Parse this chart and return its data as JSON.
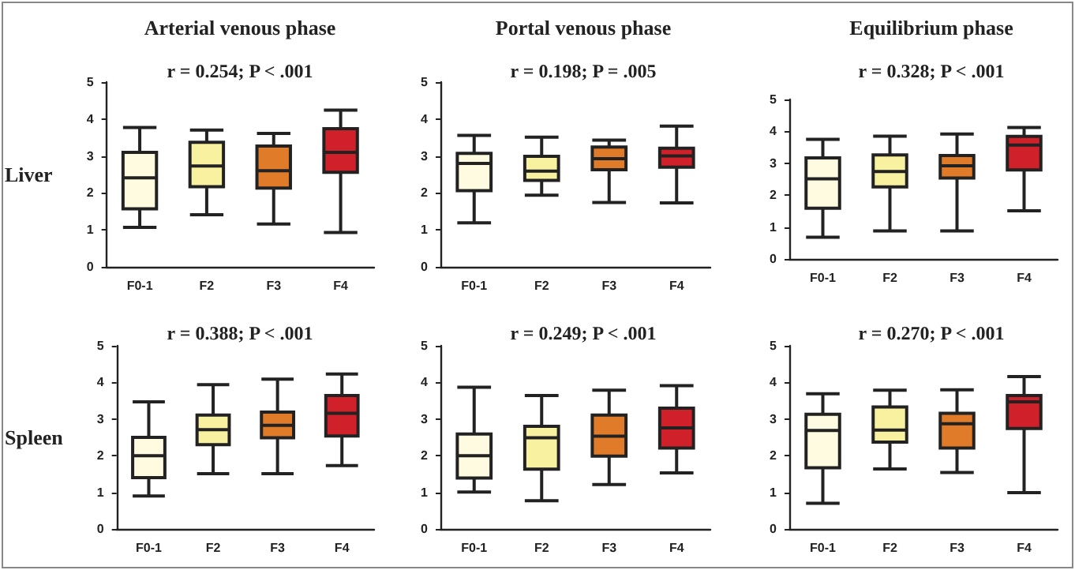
{
  "chart_data": [
    {
      "type": "box",
      "title": "Arterial venous phase",
      "subtitle": "r = 0.254; P < .001",
      "ylabel": "Liver",
      "categories": [
        "F0-1",
        "F2",
        "F3",
        "F4"
      ],
      "colors": [
        "#fffbe0",
        "#f7f1a0",
        "#e07b2a",
        "#d0202a"
      ],
      "ylim": [
        0,
        5
      ],
      "yticks": [
        0,
        1,
        2,
        3,
        4,
        5
      ],
      "grid": false,
      "boxes": [
        {
          "low": 1.07,
          "q1": 1.57,
          "median": 2.41,
          "q3": 3.1,
          "high": 3.77
        },
        {
          "low": 1.41,
          "q1": 2.17,
          "median": 2.73,
          "q3": 3.37,
          "high": 3.7
        },
        {
          "low": 1.16,
          "q1": 2.13,
          "median": 2.6,
          "q3": 3.27,
          "high": 3.61
        },
        {
          "low": 0.93,
          "q1": 2.56,
          "median": 3.1,
          "q3": 3.74,
          "high": 4.24
        }
      ]
    },
    {
      "type": "box",
      "title": "Portal venous phase",
      "subtitle": "r = 0.198; P = .005",
      "categories": [
        "F0-1",
        "F2",
        "F3",
        "F4"
      ],
      "colors": [
        "#fffbe0",
        "#f7f1a0",
        "#e07b2a",
        "#d0202a"
      ],
      "ylim": [
        0,
        5
      ],
      "yticks": [
        0,
        1,
        2,
        3,
        4,
        5
      ],
      "grid": false,
      "boxes": [
        {
          "low": 1.19,
          "q1": 2.06,
          "median": 2.8,
          "q3": 3.07,
          "high": 3.56
        },
        {
          "low": 1.94,
          "q1": 2.34,
          "median": 2.59,
          "q3": 2.99,
          "high": 3.51
        },
        {
          "low": 1.74,
          "q1": 2.63,
          "median": 2.93,
          "q3": 3.24,
          "high": 3.43
        },
        {
          "low": 1.73,
          "q1": 2.7,
          "median": 3.0,
          "q3": 3.21,
          "high": 3.81
        }
      ]
    },
    {
      "type": "box",
      "title": "Equilibrium phase",
      "subtitle": "r = 0.328; P < .001",
      "categories": [
        "F0-1",
        "F2",
        "F3",
        "F4"
      ],
      "colors": [
        "#fffbe0",
        "#f7f1a0",
        "#e07b2a",
        "#d0202a"
      ],
      "ylim": [
        0,
        5
      ],
      "yticks": [
        0,
        1,
        2,
        3,
        4,
        5
      ],
      "grid": false,
      "boxes": [
        {
          "low": 0.68,
          "q1": 1.59,
          "median": 2.51,
          "q3": 3.17,
          "high": 3.75
        },
        {
          "low": 0.88,
          "q1": 2.26,
          "median": 2.74,
          "q3": 3.26,
          "high": 3.85
        },
        {
          "low": 0.88,
          "q1": 2.54,
          "median": 2.92,
          "q3": 3.24,
          "high": 3.92
        },
        {
          "low": 1.51,
          "q1": 2.79,
          "median": 3.57,
          "q3": 3.84,
          "high": 4.12
        }
      ]
    },
    {
      "type": "box",
      "subtitle": "r = 0.388; P < .001",
      "ylabel": "Spleen",
      "categories": [
        "F0-1",
        "F2",
        "F3",
        "F4"
      ],
      "colors": [
        "#fffbe0",
        "#f7f1a0",
        "#e07b2a",
        "#d0202a"
      ],
      "ylim": [
        0,
        5
      ],
      "yticks": [
        0,
        1,
        2,
        3,
        4,
        5
      ],
      "grid": false,
      "boxes": [
        {
          "low": 0.9,
          "q1": 1.4,
          "median": 2.0,
          "q3": 2.5,
          "high": 3.47
        },
        {
          "low": 1.51,
          "q1": 2.3,
          "median": 2.71,
          "q3": 3.11,
          "high": 3.94
        },
        {
          "low": 1.51,
          "q1": 2.49,
          "median": 2.83,
          "q3": 3.19,
          "high": 4.09
        },
        {
          "low": 1.73,
          "q1": 2.54,
          "median": 3.16,
          "q3": 3.64,
          "high": 4.23
        }
      ]
    },
    {
      "type": "box",
      "subtitle": "r = 0.249; P < .001",
      "categories": [
        "F0-1",
        "F2",
        "F3",
        "F4"
      ],
      "colors": [
        "#fffbe0",
        "#f7f1a0",
        "#e07b2a",
        "#d0202a"
      ],
      "ylim": [
        0,
        5
      ],
      "yticks": [
        0,
        1,
        2,
        3,
        4,
        5
      ],
      "grid": false,
      "boxes": [
        {
          "low": 1.01,
          "q1": 1.39,
          "median": 2.0,
          "q3": 2.59,
          "high": 3.87
        },
        {
          "low": 0.77,
          "q1": 1.63,
          "median": 2.49,
          "q3": 2.8,
          "high": 3.64
        },
        {
          "low": 1.21,
          "q1": 1.99,
          "median": 2.53,
          "q3": 3.11,
          "high": 3.79
        },
        {
          "low": 1.53,
          "q1": 2.21,
          "median": 2.76,
          "q3": 3.3,
          "high": 3.91
        }
      ]
    },
    {
      "type": "box",
      "subtitle": "r = 0.270; P < .001",
      "categories": [
        "F0-1",
        "F2",
        "F3",
        "F4"
      ],
      "colors": [
        "#fffbe0",
        "#f7f1a0",
        "#e07b2a",
        "#d0202a"
      ],
      "ylim": [
        0,
        5
      ],
      "yticks": [
        0,
        1,
        2,
        3,
        4,
        5
      ],
      "grid": false,
      "boxes": [
        {
          "low": 0.7,
          "q1": 1.67,
          "median": 2.69,
          "q3": 3.13,
          "high": 3.69
        },
        {
          "low": 1.64,
          "q1": 2.37,
          "median": 2.7,
          "q3": 3.33,
          "high": 3.79
        },
        {
          "low": 1.54,
          "q1": 2.21,
          "median": 2.87,
          "q3": 3.16,
          "high": 3.8
        },
        {
          "low": 0.99,
          "q1": 2.74,
          "median": 3.47,
          "q3": 3.64,
          "high": 4.16
        }
      ]
    }
  ]
}
